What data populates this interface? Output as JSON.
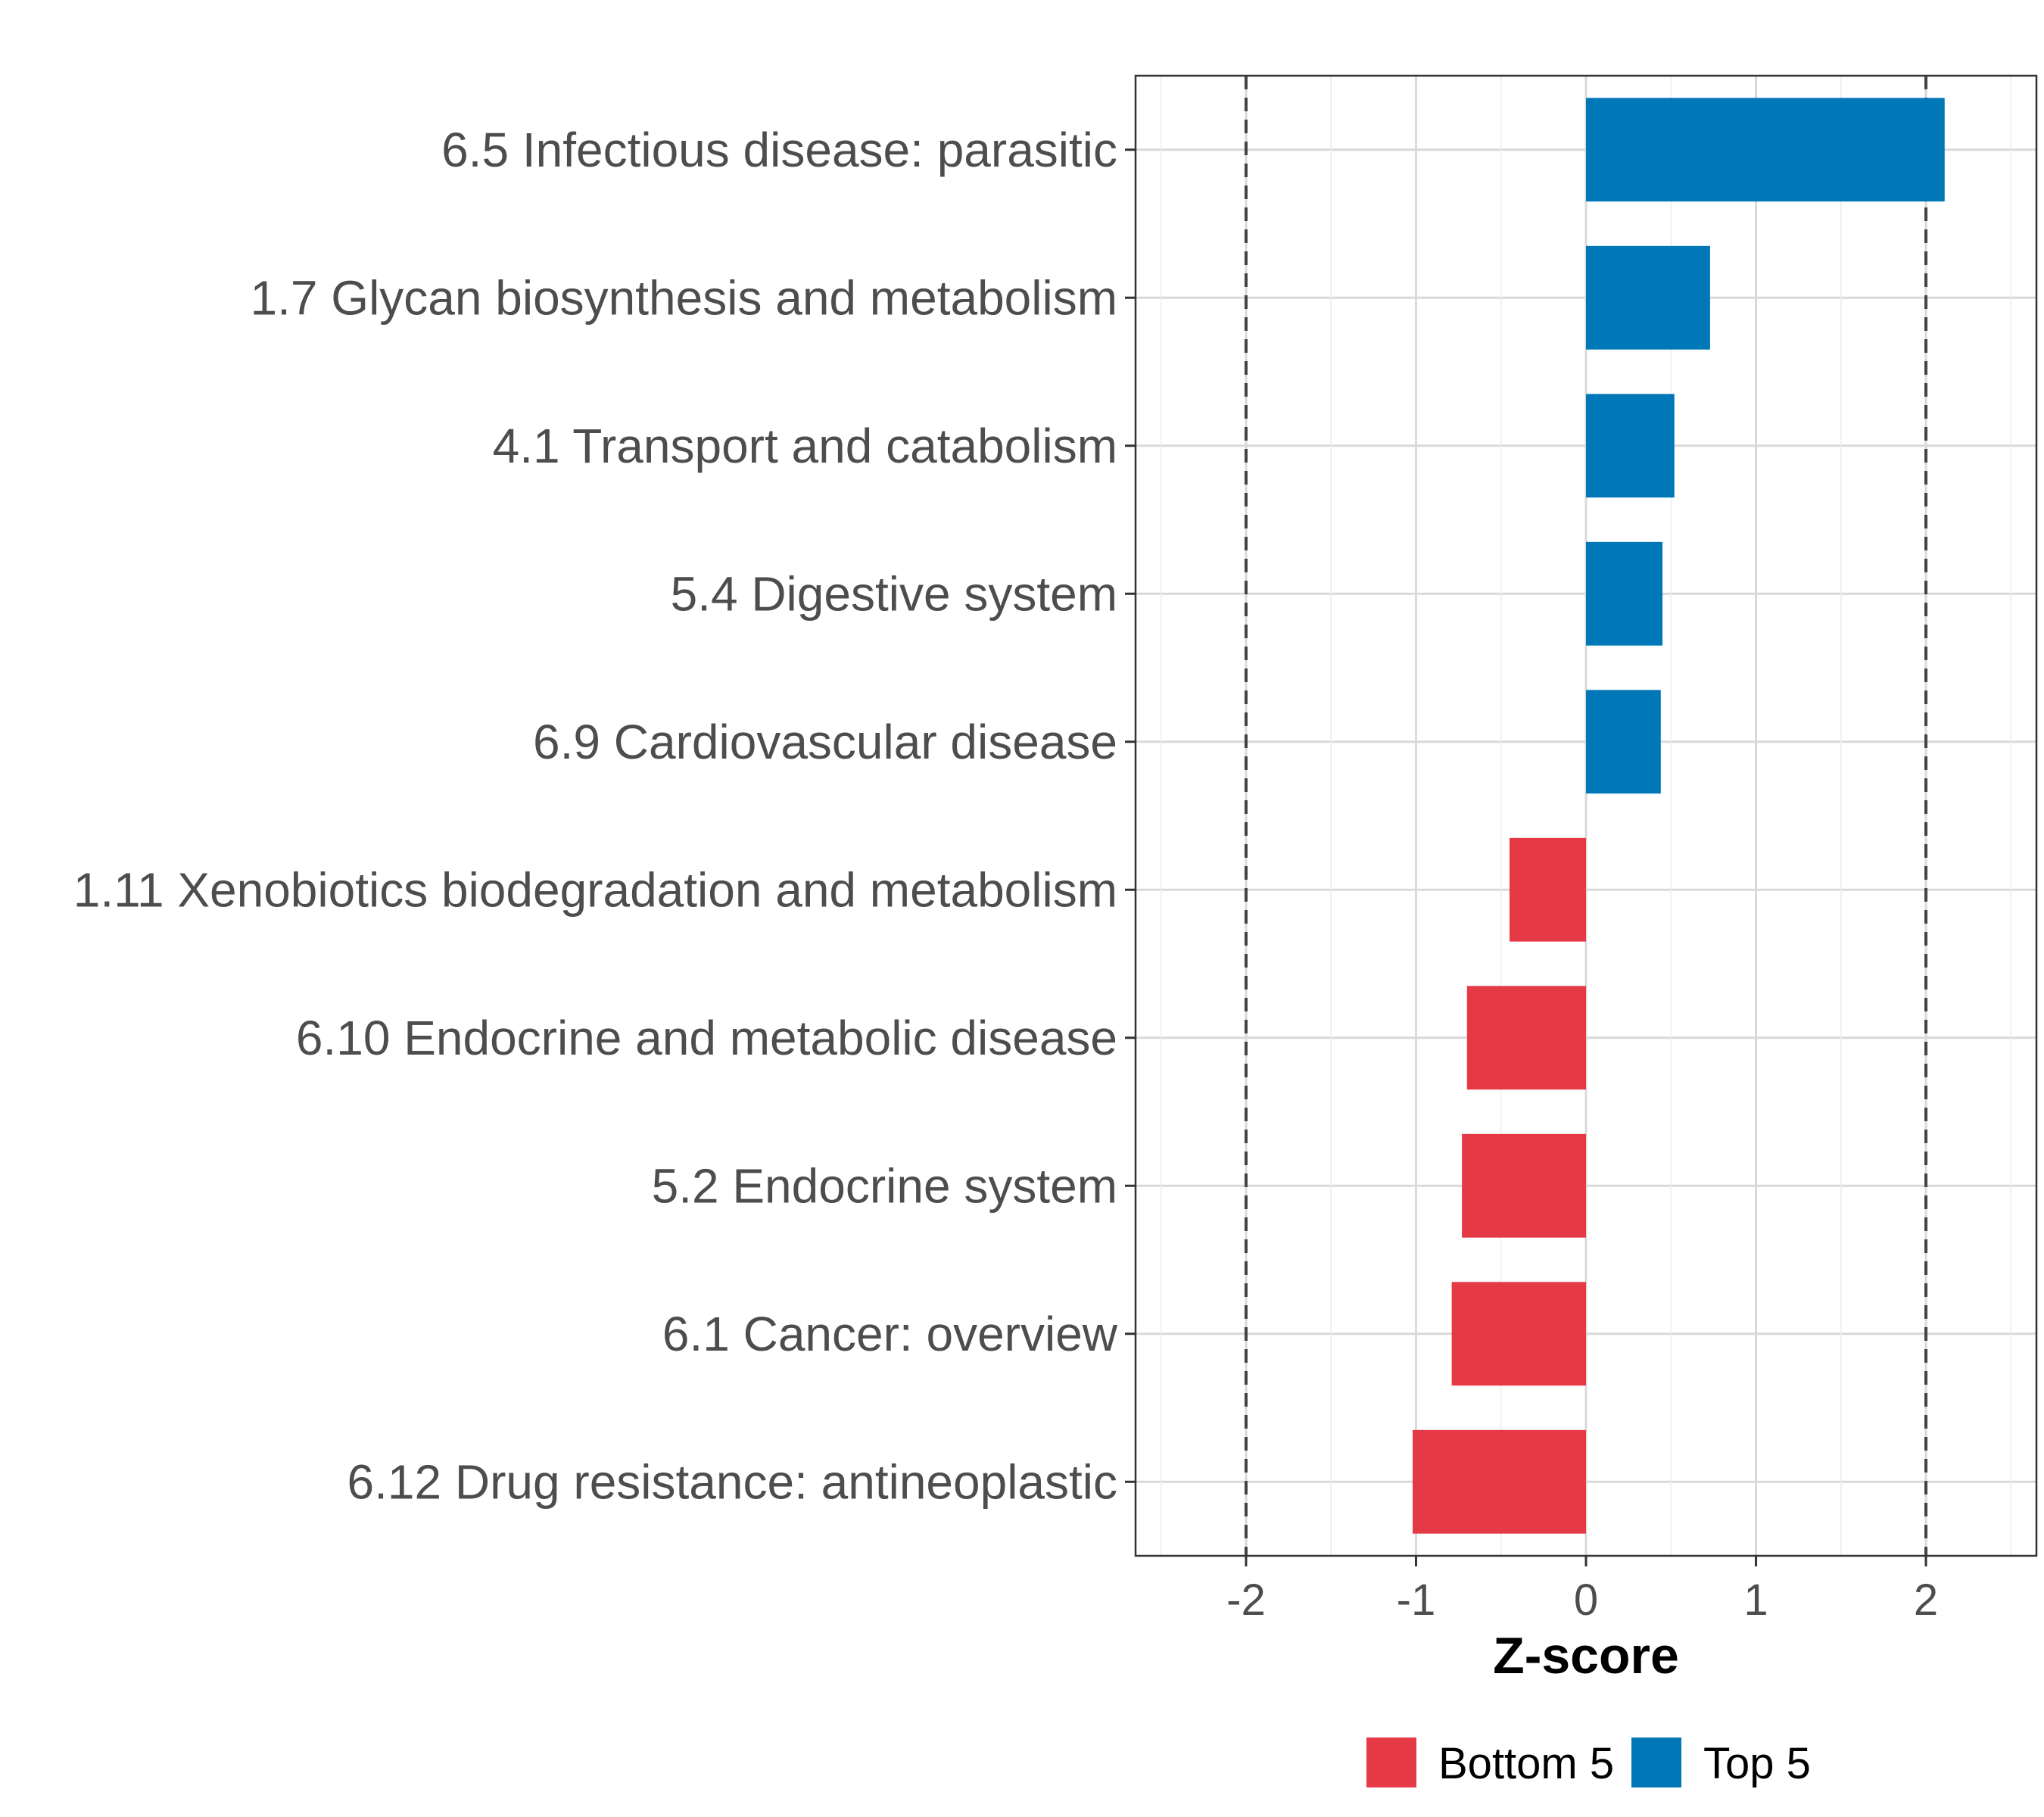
{
  "chart_data": {
    "type": "bar",
    "orientation": "horizontal",
    "title": "",
    "xlabel": "Z-score",
    "ylabel": "",
    "xlim": [
      -2.65,
      2.65
    ],
    "xticks": [
      -2,
      -1,
      0,
      1,
      2
    ],
    "xtick_labels": [
      "-2",
      "-1",
      "0",
      "1",
      "2"
    ],
    "threshold_lines": [
      -2,
      2
    ],
    "grid": true,
    "legend_position": "bottom",
    "categories": [
      "6.5 Infectious disease: parasitic",
      "1.7 Glycan biosynthesis and metabolism",
      "4.1 Transport and catabolism",
      "5.4 Digestive system",
      "6.9 Cardiovascular disease",
      "1.11 Xenobiotics biodegradation and metabolism",
      "6.10 Endocrine and metabolic disease",
      "5.2 Endocrine system",
      "6.1 Cancer: overview",
      "6.12 Drug resistance: antineoplastic"
    ],
    "values": [
      2.11,
      0.73,
      0.52,
      0.45,
      0.44,
      -0.45,
      -0.7,
      -0.73,
      -0.79,
      -1.02
    ],
    "groups": [
      "Top 5",
      "Top 5",
      "Top 5",
      "Top 5",
      "Top 5",
      "Bottom 5",
      "Bottom 5",
      "Bottom 5",
      "Bottom 5",
      "Bottom 5"
    ],
    "legend": [
      {
        "label": "Bottom 5",
        "color": "#e63946"
      },
      {
        "label": "Top 5",
        "color": "#0077b6"
      }
    ]
  }
}
